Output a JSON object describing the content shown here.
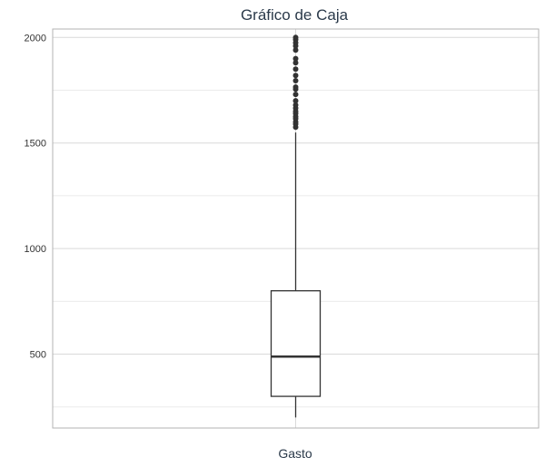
{
  "chart_data": {
    "type": "boxplot",
    "title": "Gráfico de Caja",
    "xlabel": "",
    "ylabel": "",
    "categories": [
      "Gasto"
    ],
    "ylim": [
      150,
      2040
    ],
    "y_ticks": [
      500,
      1000,
      1500,
      2000
    ],
    "grid": true,
    "box": {
      "min": 200,
      "q1": 300,
      "median": 488,
      "q3": 800,
      "whisker_high": 1550
    },
    "outliers": [
      1575,
      1590,
      1600,
      1615,
      1625,
      1640,
      1650,
      1665,
      1680,
      1700,
      1730,
      1755,
      1765,
      1795,
      1820,
      1850,
      1880,
      1900,
      1940,
      1960,
      1975,
      1990,
      2000
    ],
    "colors": {
      "box_stroke": "#333333",
      "outlier_fill": "#333333",
      "grid_major": "#d9d9d9",
      "grid_minor": "#ebebeb",
      "panel_border": "#b3b3b3"
    }
  }
}
